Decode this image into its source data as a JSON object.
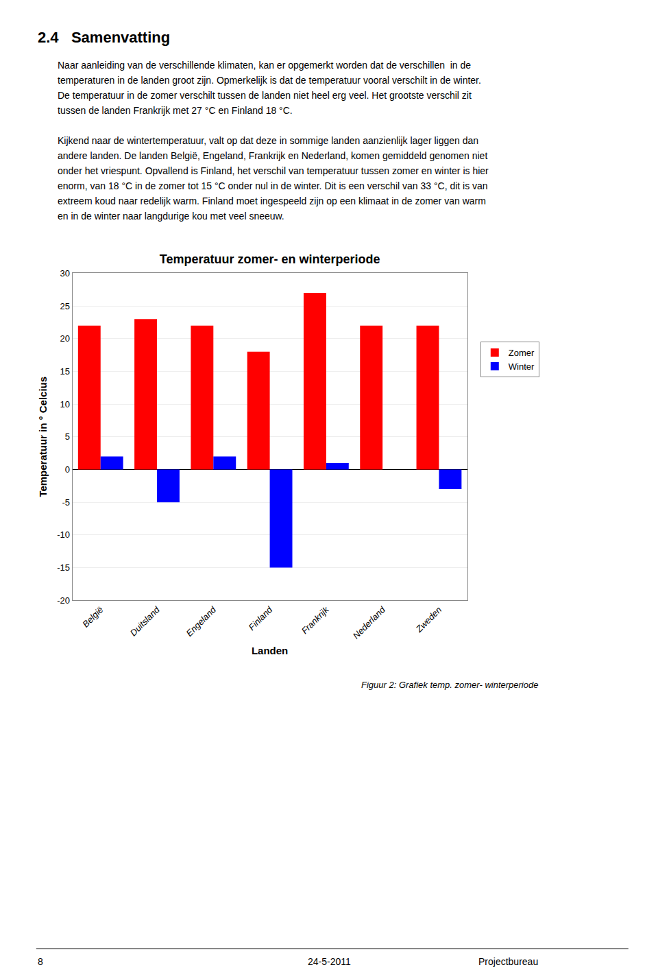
{
  "heading": "2.4   Samenvatting",
  "body": [
    [
      "Naar aanleiding van de verschillende klimaten, kan er opgemerkt worden dat de verschillen  in de",
      "temperaturen in de landen groot zijn. Opmerkelijk is dat de temperatuur vooral verschilt in de winter.",
      "De temperatuur in de zomer verschilt tussen de landen niet heel erg veel. Het grootste verschil zit",
      "tussen de landen Frankrijk met 27 °C en Finland 18 °C."
    ],
    [
      "Kijkend naar de wintertemperatuur, valt op dat deze in sommige landen aanzienlijk lager liggen dan",
      "andere landen. De landen België, Engeland, Frankrijk en Nederland, komen gemiddeld genomen niet",
      "onder het vriespunt. Opvallend is Finland, het verschil van temperatuur tussen zomer en winter is hier",
      "enorm, van 18 °C in de zomer tot 15 °C onder nul in de winter. Dit is een verschil van 33 °C, dit is van",
      "extreem koud naar redelijk warm. Finland moet ingespeeld zijn op een klimaat in de zomer van warm",
      "en in de winter naar langdurige kou met veel sneeuw."
    ]
  ],
  "caption": "Figuur 2: Grafiek temp. zomer- winterperiode",
  "footer": [
    "8",
    "24-5-2011",
    "Projectbureau"
  ],
  "chart_data": {
    "type": "bar",
    "title": "Temperatuur zomer- en winterperiode",
    "xlabel": "Landen",
    "ylabel": "Temperatuur in ° Celcius",
    "categories": [
      "België",
      "Duitsland",
      "Engeland",
      "Finland",
      "Frankrijk",
      "Nederland",
      "Zweden"
    ],
    "series": [
      {
        "name": "Zomer",
        "color": "#FF0000",
        "values": [
          22,
          23,
          22,
          18,
          27,
          22,
          22
        ]
      },
      {
        "name": "Winter",
        "color": "#0000FF",
        "values": [
          2,
          -5,
          2,
          -15,
          1,
          0,
          -3
        ]
      }
    ],
    "ylim": [
      -20,
      30
    ],
    "yticks": [
      -20,
      -15,
      -10,
      -5,
      0,
      5,
      10,
      15,
      20,
      25,
      30
    ],
    "grid": true,
    "legend": "right"
  }
}
